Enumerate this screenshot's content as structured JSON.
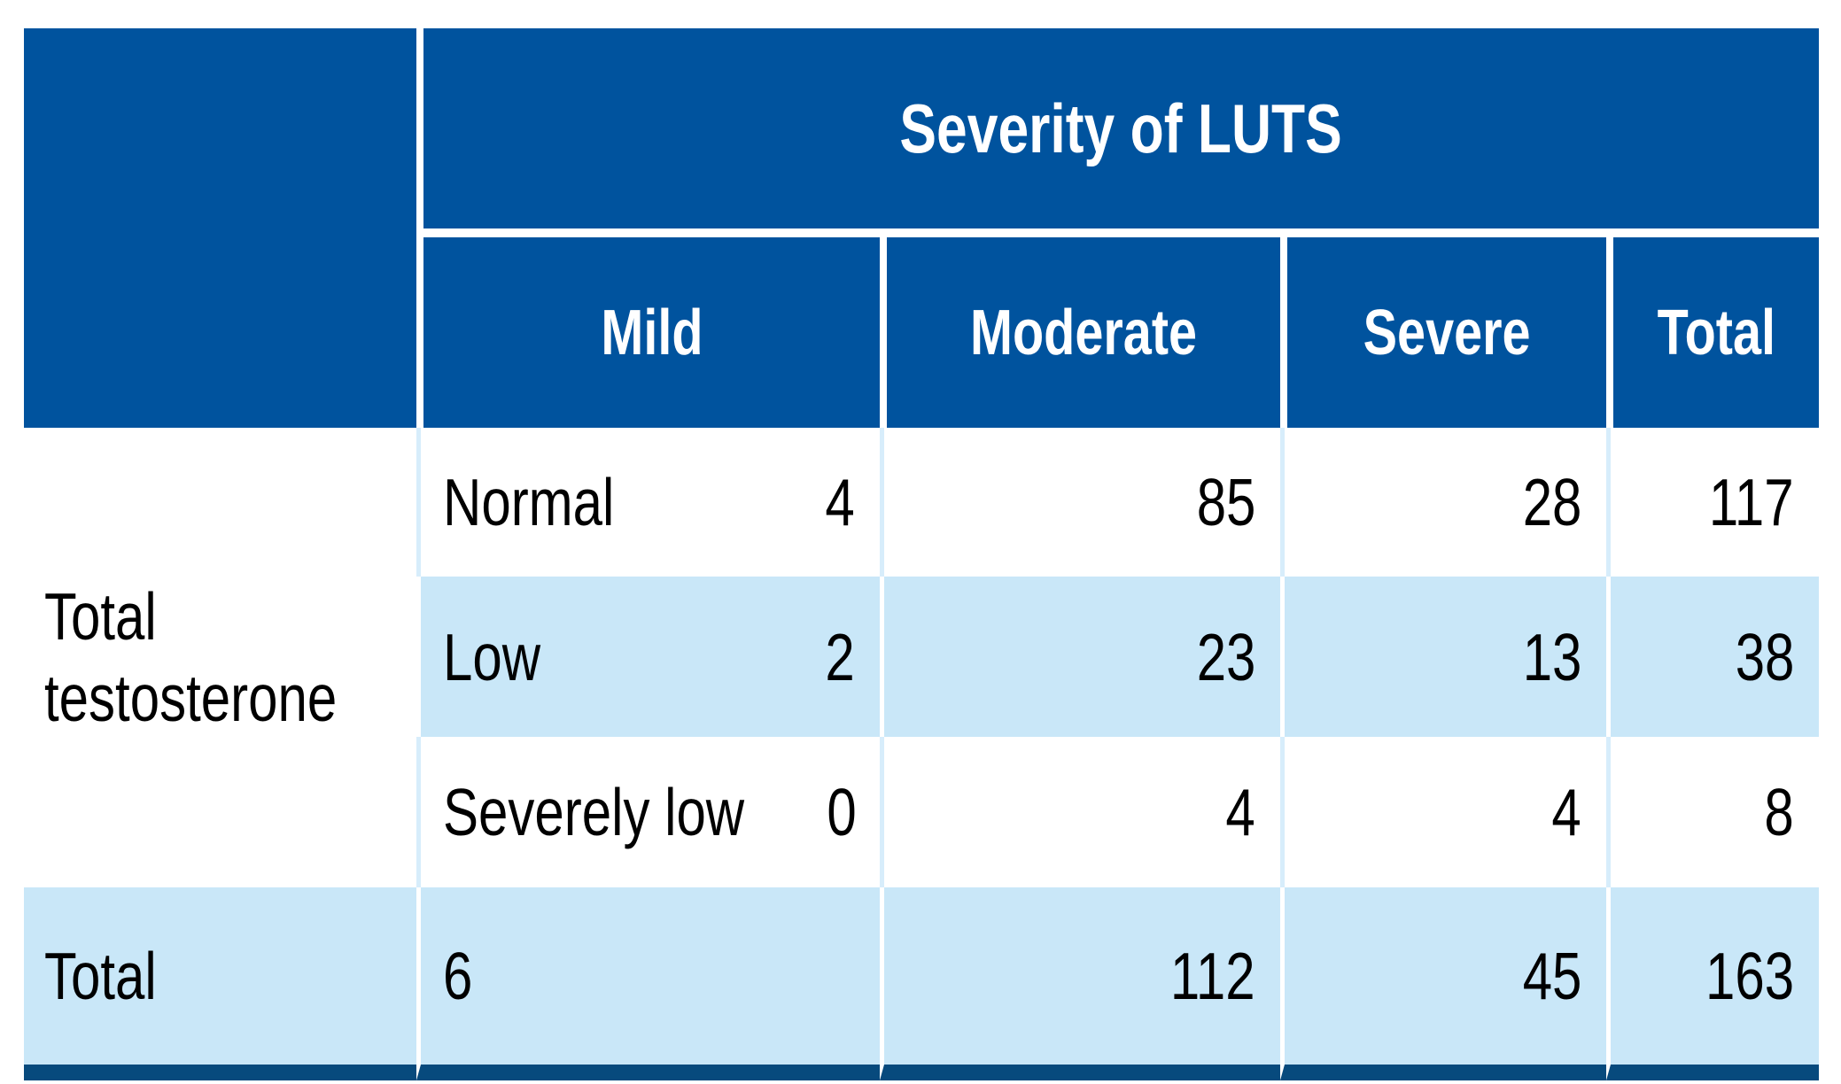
{
  "table": {
    "header": {
      "title": "Severity of LUTS",
      "columns": [
        "Mild",
        "Moderate",
        "Severe",
        "Total"
      ]
    },
    "row_group_label": "Total testosterone",
    "rows": [
      {
        "category": "Normal",
        "mild": "4",
        "moderate": "85",
        "severe": "28",
        "total": "117"
      },
      {
        "category": "Low",
        "mild": "2",
        "moderate": "23",
        "severe": "13",
        "total": "38"
      },
      {
        "category": "Severely low",
        "mild": "0",
        "moderate": "4",
        "severe": "4",
        "total": "8"
      }
    ],
    "total_row": {
      "label": "Total",
      "mild": "6",
      "moderate": "112",
      "severe": "45",
      "total": "163"
    }
  },
  "colors": {
    "header_blue": "#00539e",
    "row_light_blue": "#c9e7f8",
    "separator_light_blue": "#d7edfb",
    "bottom_rule_navy": "#074a7d",
    "header_text": "#ffffff",
    "body_text": "#000000"
  },
  "chart_data": {
    "type": "table",
    "title": "Severity of LUTS",
    "columns": [
      "Mild",
      "Moderate",
      "Severe",
      "Total"
    ],
    "row_group": "Total testosterone",
    "rows": [
      {
        "label": "Normal",
        "values": [
          4,
          85,
          28,
          117
        ]
      },
      {
        "label": "Low",
        "values": [
          2,
          23,
          13,
          38
        ]
      },
      {
        "label": "Severely low",
        "values": [
          0,
          4,
          4,
          8
        ]
      },
      {
        "label": "Total",
        "values": [
          6,
          112,
          45,
          163
        ]
      }
    ]
  }
}
